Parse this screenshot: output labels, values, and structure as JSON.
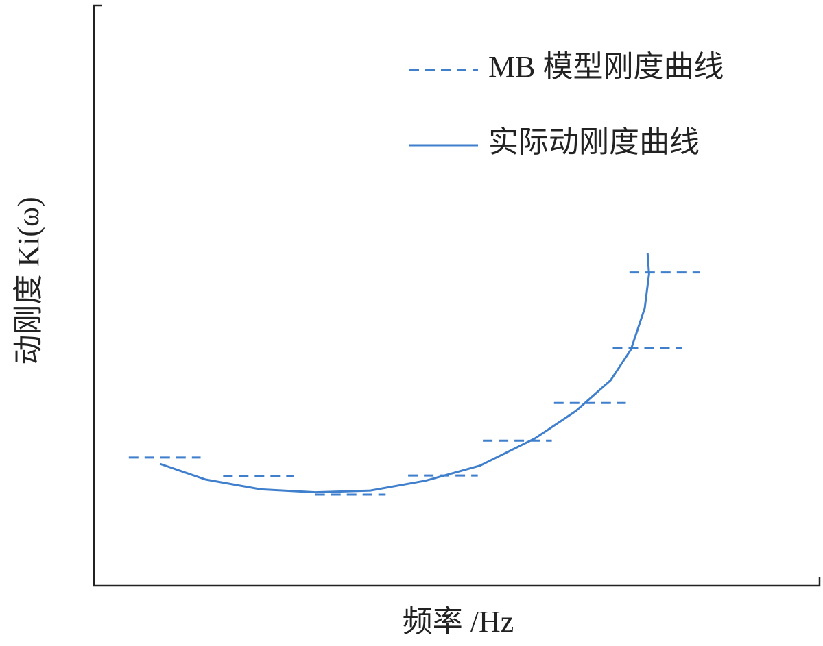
{
  "chart_data": {
    "type": "line",
    "x_label": "频率 /Hz",
    "y_label": "动刚度 Ki(ω)",
    "xlim": [
      0,
      100
    ],
    "ylim": [
      0,
      100
    ],
    "legend": "upper right",
    "series": [
      {
        "name": "MB 模型刚度曲线",
        "color": "#3f7fcc",
        "style": "dashed",
        "x": [
          4.8,
          14.7,
          null,
          17.8,
          27.5,
          null,
          30.5,
          40.2,
          null,
          43.3,
          52.9,
          null,
          53.6,
          63.1,
          null,
          63.4,
          73.3,
          null,
          71.5,
          81.1,
          null,
          73.8,
          83.5
        ],
        "values": [
          22.1,
          22.1,
          null,
          18.9,
          18.9,
          null,
          15.7,
          15.7,
          null,
          19.0,
          19.0,
          null,
          25.0,
          25.0,
          null,
          31.5,
          31.5,
          null,
          41.0,
          41.0,
          null,
          54.0,
          54.0
        ]
      },
      {
        "name": "实际动刚度曲线",
        "color": "#3f7fcc",
        "style": "solid",
        "x": [
          9.1,
          15.4,
          23.0,
          30.5,
          38.1,
          45.7,
          53.2,
          60.8,
          66.4,
          71.2,
          74.0,
          75.9,
          76.5,
          76.3
        ],
        "values": [
          21.0,
          18.3,
          16.6,
          16.1,
          16.4,
          18.1,
          20.7,
          25.4,
          30.1,
          35.4,
          40.7,
          47.8,
          53.7,
          57.3
        ]
      }
    ]
  }
}
